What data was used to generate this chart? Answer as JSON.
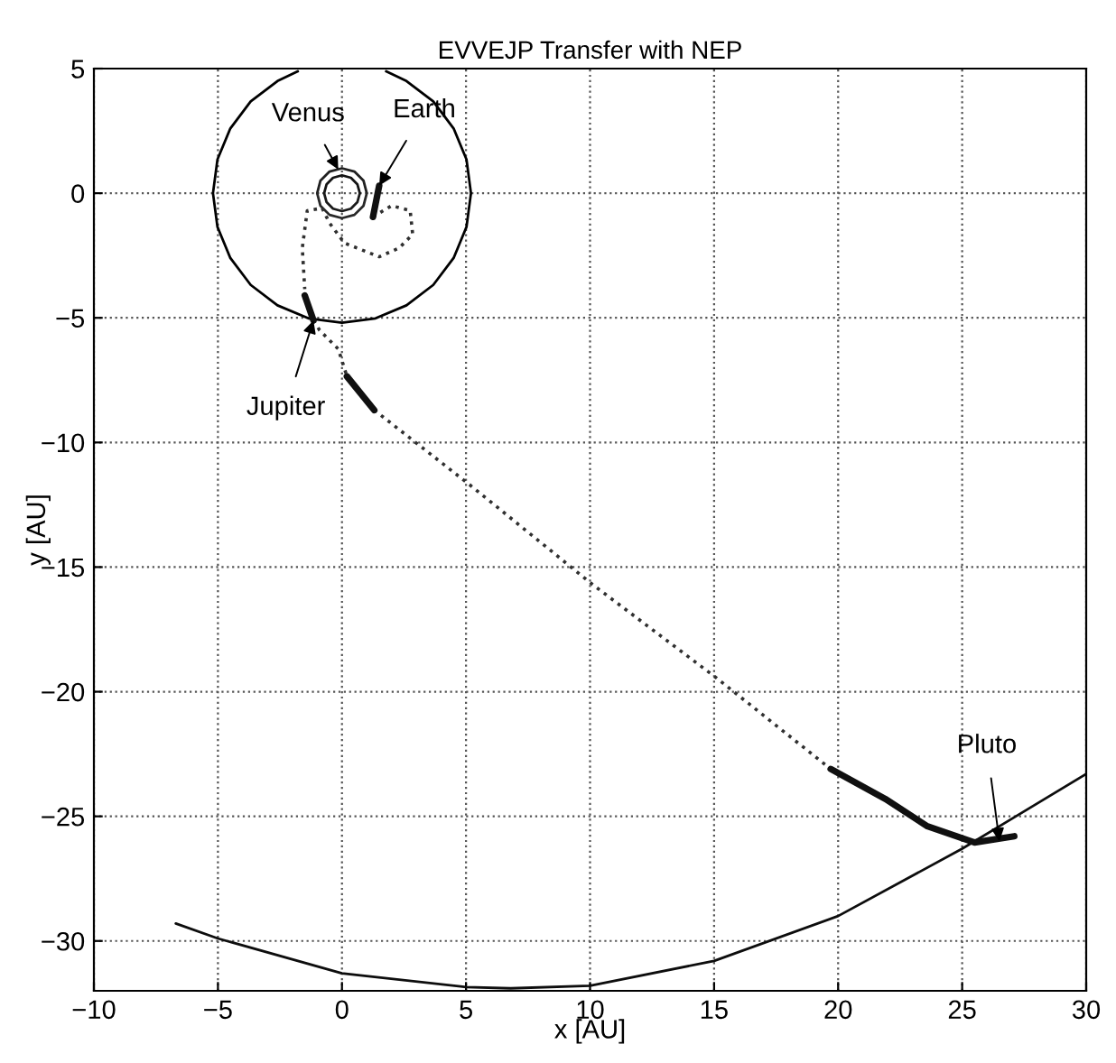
{
  "chart_data": {
    "type": "line",
    "title": "EVVEJP Transfer with NEP",
    "xlabel": "x [AU]",
    "ylabel": "y [AU]",
    "xlim": [
      -10,
      30
    ],
    "ylim": [
      -32,
      5
    ],
    "xticks": [
      -10,
      -5,
      0,
      5,
      10,
      15,
      20,
      25,
      30
    ],
    "yticks": [
      -30,
      -25,
      -20,
      -15,
      -10,
      -5,
      0,
      5
    ],
    "grid": true,
    "marker": "none",
    "series": [
      {
        "color": "#000000",
        "line_style": "solid",
        "x": [
          -1.78,
          -2.6,
          -3.68,
          -4.5,
          -5.02,
          -5.2,
          -5.02,
          -4.5,
          -3.68,
          -2.6,
          -1.35,
          0,
          1.35,
          2.6,
          3.68,
          4.5,
          5.02,
          5.2,
          5.02,
          4.5,
          3.68,
          2.6,
          1.78
        ],
        "values": [
          4.89,
          4.5,
          3.68,
          2.6,
          1.35,
          0,
          -1.35,
          -2.6,
          -3.68,
          -4.5,
          -5.02,
          -5.2,
          -5.02,
          -4.5,
          -3.68,
          -2.6,
          -1.35,
          0,
          1.35,
          2.6,
          3.68,
          4.5,
          4.89
        ]
      },
      {
        "color": "#141414",
        "line_style": "solid",
        "x": [
          -0.72,
          -0.62,
          -0.36,
          0,
          0.36,
          0.62,
          0.72
        ],
        "values": [
          0,
          0.36,
          0.62,
          0.72,
          0.62,
          0.36,
          0
        ]
      },
      {
        "color": "#1a1a1a",
        "line_style": "solid",
        "x": [
          -0.72,
          -0.62,
          -0.36,
          0,
          0.36,
          0.62,
          0.72
        ],
        "values": [
          0,
          -0.36,
          -0.62,
          -0.72,
          -0.62,
          -0.36,
          0
        ]
      },
      {
        "color": "#202020",
        "line_style": "solid",
        "x": [
          -1.0,
          -0.87,
          -0.5,
          0,
          0.5,
          0.87,
          1.0
        ],
        "values": [
          0,
          0.5,
          0.87,
          1.0,
          0.87,
          0.5,
          0
        ]
      },
      {
        "color": "#282828",
        "line_style": "solid",
        "x": [
          -1.0,
          -0.87,
          -0.5,
          0,
          0.5,
          0.87,
          1.0
        ],
        "values": [
          0,
          -0.5,
          -0.87,
          -1.0,
          -0.87,
          -0.5,
          0
        ]
      },
      {
        "color": "#0d0d0d",
        "line_style": "solid",
        "x": [
          -6.7,
          -5,
          0,
          5,
          6.8,
          10,
          15,
          20,
          25,
          27,
          30
        ],
        "values": [
          -29.3,
          -29.9,
          -31.3,
          -31.85,
          -31.9,
          -31.8,
          -30.8,
          -29.0,
          -26.3,
          -25.1,
          -23.3
        ]
      },
      {
        "color": "#303030",
        "line_style": "dotted",
        "x": [
          1.25,
          2.0,
          2.75,
          2.85,
          2.3,
          1.5,
          0.1,
          -0.5,
          -0.8,
          -1.4,
          -1.6,
          -1.5,
          null,
          -1.15,
          -0.9,
          -0.15,
          0.2,
          null,
          1.3,
          5.15,
          10.1,
          15.1,
          19.7
        ],
        "values": [
          -0.95,
          -0.5,
          -0.7,
          -1.65,
          -2.2,
          -2.55,
          -2.0,
          -1.2,
          -0.6,
          -0.7,
          -2.2,
          -3.85,
          null,
          -5.1,
          -5.5,
          -6.25,
          -7.35,
          null,
          -8.7,
          -11.7,
          -15.7,
          -19.45,
          -23.1
        ]
      },
      {
        "color": "#101010",
        "line_style": "solid",
        "x": [
          1.5,
          1.25,
          null,
          -1.5,
          -1.15,
          null,
          0.2,
          1.3,
          null,
          19.7,
          21.9,
          23.6,
          25.5,
          27.1
        ],
        "values": [
          0.3,
          -0.95,
          null,
          -4.1,
          -5.1,
          null,
          -7.35,
          -8.7,
          null,
          -23.1,
          -24.3,
          -25.4,
          -26.05,
          -25.8
        ]
      }
    ],
    "annotations": [
      {
        "text": "Venus",
        "x": -0.15,
        "y": 0.95
      },
      {
        "text": "Earth",
        "x": 1.5,
        "y": 0.3
      },
      {
        "text": "Jupiter",
        "x": -1.15,
        "y": -5.1
      },
      {
        "text": "Pluto",
        "x": 26.5,
        "y": -26.0
      }
    ]
  }
}
